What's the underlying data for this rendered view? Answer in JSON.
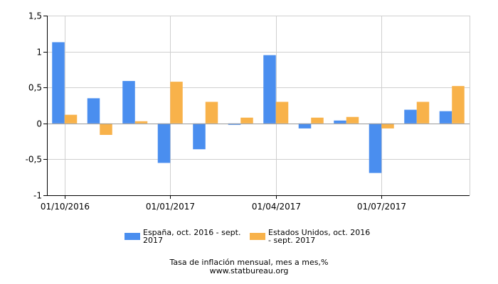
{
  "chart_data": {
    "type": "bar",
    "categories": [
      "10/2016",
      "11/2016",
      "12/2016",
      "01/2017",
      "02/2017",
      "03/2017",
      "04/2017",
      "05/2017",
      "06/2017",
      "07/2017",
      "08/2017",
      "09/2017"
    ],
    "series": [
      {
        "name": "España, oct. 2016 - sept. 2017",
        "name_lines": [
          "España, oct. 2016 - sept.",
          "2017"
        ],
        "color": "#4a8eef",
        "values": [
          1.13,
          0.35,
          0.59,
          -0.55,
          -0.36,
          -0.02,
          0.95,
          -0.07,
          0.04,
          -0.69,
          0.19,
          0.17
        ]
      },
      {
        "name": "Estados Unidos, oct. 2016 - sept. 2017",
        "name_lines": [
          "Estados Unidos, oct. 2016",
          "- sept. 2017"
        ],
        "color": "#f8b24a",
        "values": [
          0.12,
          -0.16,
          0.03,
          0.58,
          0.3,
          0.08,
          0.3,
          0.08,
          0.09,
          -0.07,
          0.3,
          0.52
        ]
      }
    ],
    "ylim": [
      -1,
      1.5
    ],
    "yticks": [
      -1,
      -0.5,
      0,
      0.5,
      1,
      1.5
    ],
    "ytick_labels": [
      "-1",
      "-0,5",
      "0",
      "0,5",
      "1",
      "1,5"
    ],
    "xtick_labels": [
      {
        "label": "01/10/2016",
        "category_index": 0
      },
      {
        "label": "01/01/2017",
        "category_index": 3
      },
      {
        "label": "01/04/2017",
        "category_index": 6
      },
      {
        "label": "01/07/2017",
        "category_index": 9
      }
    ],
    "grid": true,
    "legend_position": "bottom",
    "title": "",
    "xlabel": "",
    "ylabel": ""
  },
  "caption": {
    "line1": "Tasa de inflación mensual, mes a mes,%",
    "line2": "www.statbureau.org"
  }
}
